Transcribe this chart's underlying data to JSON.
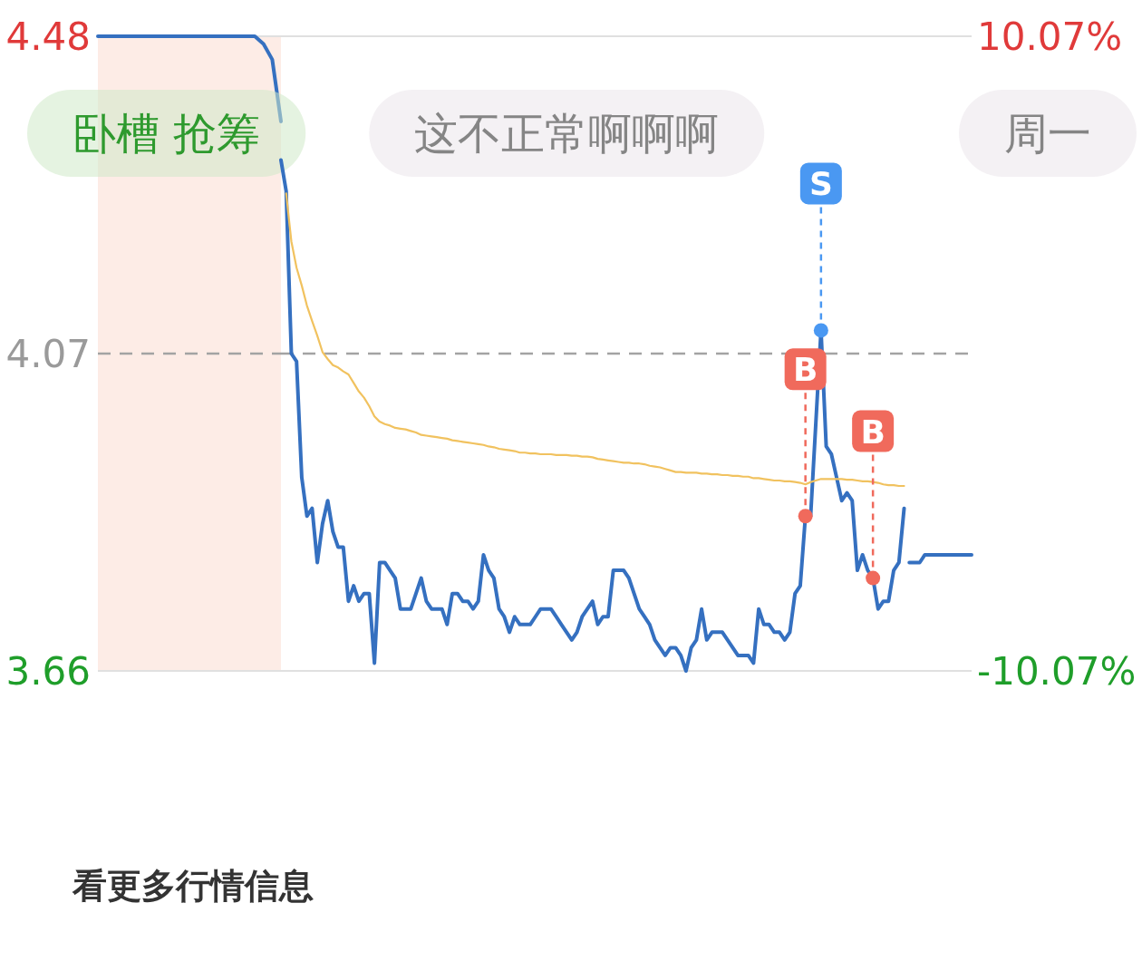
{
  "chart_data": [
    {
      "type": "line",
      "categories": [
        null,
        null,
        null,
        null,
        null,
        null,
        null,
        null,
        null,
        null,
        null,
        null,
        null,
        null,
        null,
        null,
        null,
        null,
        null,
        null,
        null,
        null
      ],
      "series": [
        {
          "color": "#3570c0",
          "values": [
            4.48,
            4.48,
            4.48,
            4.48,
            4.48,
            4.48,
            4.48,
            4.48,
            4.48,
            4.48,
            4.48,
            4.48,
            4.48,
            4.48,
            4.48,
            4.48,
            4.48,
            4.48,
            4.48,
            4.47,
            4.45,
            4.37
          ]
        }
      ],
      "ylim": [
        3.66,
        4.48
      ],
      "yticks": [
        4.48,
        4.07,
        3.66
      ],
      "tick_labels": "y",
      "ref_lines": [
        {
          "axis": "y",
          "value": 4.07,
          "color": "#a3a3a3",
          "line_style": "dashed"
        }
      ],
      "bands": [
        {
          "axis": "y",
          "from": 3.66,
          "to": 4.48,
          "color": "#fdece6"
        }
      ],
      "annotations": [
        "看更多行情信息"
      ]
    },
    {
      "type": "line",
      "categories": [
        null,
        null,
        null,
        null,
        null,
        null,
        null,
        null,
        null,
        null,
        null,
        null,
        null,
        null,
        null,
        null,
        null,
        null,
        null,
        null,
        null,
        null,
        null,
        null,
        null,
        null,
        null,
        null,
        null,
        null,
        null,
        null,
        null,
        null,
        null,
        null,
        null,
        null,
        null,
        null,
        null,
        null,
        null,
        null,
        null,
        null,
        null,
        null,
        null,
        null,
        null,
        null,
        null,
        null,
        null,
        null,
        null,
        null,
        null,
        null,
        null,
        null,
        null,
        null,
        null,
        null,
        null,
        null,
        null,
        null,
        null,
        null,
        null,
        null,
        null,
        null,
        null,
        null,
        null,
        null,
        null,
        null,
        null,
        null,
        null,
        null,
        null,
        null,
        null,
        null,
        null,
        null,
        null,
        null,
        null,
        null,
        null,
        null,
        null,
        null,
        null,
        null,
        null,
        null,
        null,
        null,
        null,
        null,
        null,
        null,
        null,
        null,
        null,
        null,
        null,
        null,
        null,
        null,
        null,
        null,
        null,
        null,
        null,
        null,
        null,
        null,
        null,
        null,
        null,
        null,
        null,
        null,
        null,
        null
      ],
      "series": [
        {
          "color": "#3570c0",
          "values": [
            4.32,
            4.28,
            4.07,
            4.06,
            3.91,
            3.86,
            3.87,
            3.8,
            3.85,
            3.88,
            3.84,
            3.82,
            3.82,
            3.75,
            3.77,
            3.75,
            3.76,
            3.76,
            3.67,
            3.8,
            3.8,
            3.79,
            3.78,
            3.74,
            3.74,
            3.74,
            3.76,
            3.78,
            3.75,
            3.74,
            3.74,
            3.74,
            3.72,
            3.76,
            3.76,
            3.75,
            3.75,
            3.74,
            3.75,
            3.81,
            3.79,
            3.78,
            3.74,
            3.73,
            3.71,
            3.73,
            3.72,
            3.72,
            3.72,
            3.73,
            3.74,
            3.74,
            3.74,
            3.73,
            3.72,
            3.71,
            3.7,
            3.71,
            3.73,
            3.74,
            3.75,
            3.72,
            3.73,
            3.73,
            3.79,
            3.79,
            3.79,
            3.78,
            3.76,
            3.74,
            3.73,
            3.72,
            3.7,
            3.69,
            3.68,
            3.69,
            3.69,
            3.68,
            3.66,
            3.69,
            3.7,
            3.74,
            3.7,
            3.71,
            3.71,
            3.71,
            3.7,
            3.69,
            3.68,
            3.68,
            3.68,
            3.67,
            3.74,
            3.72,
            3.72,
            3.71,
            3.71,
            3.7,
            3.71,
            3.76,
            3.77,
            3.86,
            3.86,
            3.98,
            4.1,
            3.95,
            3.94,
            3.91,
            3.88,
            3.89,
            3.88,
            3.79,
            3.81,
            3.79,
            3.78,
            3.74,
            3.75,
            3.75,
            3.79,
            3.8,
            3.87,
            null,
            null,
            null,
            null,
            null,
            null,
            null,
            null,
            null,
            null,
            null,
            null,
            null
          ]
        },
        {
          "color": "#3570c0",
          "values": [
            null,
            null,
            null,
            null,
            null,
            null,
            null,
            null,
            null,
            null,
            null,
            null,
            null,
            null,
            null,
            null,
            null,
            null,
            null,
            null,
            null,
            null,
            null,
            null,
            null,
            null,
            null,
            null,
            null,
            null,
            null,
            null,
            null,
            null,
            null,
            null,
            null,
            null,
            null,
            null,
            null,
            null,
            null,
            null,
            null,
            null,
            null,
            null,
            null,
            null,
            null,
            null,
            null,
            null,
            null,
            null,
            null,
            null,
            null,
            null,
            null,
            null,
            null,
            null,
            null,
            null,
            null,
            null,
            null,
            null,
            null,
            null,
            null,
            null,
            null,
            null,
            null,
            null,
            null,
            null,
            null,
            null,
            null,
            null,
            null,
            null,
            null,
            null,
            null,
            null,
            null,
            null,
            null,
            null,
            null,
            null,
            null,
            null,
            null,
            null,
            null,
            null,
            null,
            null,
            null,
            null,
            null,
            null,
            null,
            null,
            null,
            null,
            null,
            null,
            null,
            null,
            null,
            null,
            null,
            null,
            null,
            3.8,
            3.8,
            3.8,
            3.81,
            3.81,
            3.81,
            3.81,
            3.81,
            3.81,
            3.81,
            3.81,
            3.81,
            3.81
          ]
        },
        {
          "color": "#f1c25f",
          "values": [
            null,
            4.277,
            4.215,
            4.181,
            4.158,
            4.132,
            4.112,
            4.093,
            4.072,
            4.063,
            4.055,
            4.052,
            4.047,
            4.043,
            4.032,
            4.021,
            4.013,
            4.002,
            3.989,
            3.982,
            3.979,
            3.977,
            3.974,
            3.973,
            3.972,
            3.97,
            3.968,
            3.965,
            3.964,
            3.963,
            3.962,
            3.961,
            3.96,
            3.958,
            3.957,
            3.956,
            3.955,
            3.954,
            3.953,
            3.952,
            3.95,
            3.949,
            3.947,
            3.946,
            3.945,
            3.944,
            3.942,
            3.942,
            3.941,
            3.941,
            3.94,
            3.94,
            3.94,
            3.939,
            3.939,
            3.939,
            3.938,
            3.938,
            3.937,
            3.937,
            3.936,
            3.934,
            3.933,
            3.932,
            3.931,
            3.93,
            3.929,
            3.929,
            3.928,
            3.928,
            3.927,
            3.925,
            3.924,
            3.923,
            3.921,
            3.919,
            3.917,
            3.917,
            3.916,
            3.916,
            3.916,
            3.915,
            3.915,
            3.914,
            3.914,
            3.913,
            3.913,
            3.912,
            3.912,
            3.911,
            3.911,
            3.909,
            3.909,
            3.908,
            3.907,
            3.906,
            3.906,
            3.905,
            3.905,
            3.904,
            3.903,
            3.901,
            3.904,
            3.906,
            3.908,
            3.908,
            3.908,
            3.908,
            3.908,
            3.907,
            3.907,
            3.906,
            3.905,
            3.905,
            3.904,
            3.903,
            3.901,
            3.9,
            3.9,
            3.899,
            3.899,
            null,
            null,
            null,
            null,
            null,
            null,
            null,
            null,
            null,
            null,
            null,
            null,
            null
          ]
        },
        {
          "type": "scatter",
          "name": "B",
          "color": "#f06a5c",
          "values": [
            null,
            null,
            null,
            null,
            null,
            null,
            null,
            null,
            null,
            null,
            null,
            null,
            null,
            null,
            null,
            null,
            null,
            null,
            null,
            null,
            null,
            null,
            null,
            null,
            null,
            null,
            null,
            null,
            null,
            null,
            null,
            null,
            null,
            null,
            null,
            null,
            null,
            null,
            null,
            null,
            null,
            null,
            null,
            null,
            null,
            null,
            null,
            null,
            null,
            null,
            null,
            null,
            null,
            null,
            null,
            null,
            null,
            null,
            null,
            null,
            null,
            null,
            null,
            null,
            null,
            null,
            null,
            null,
            null,
            null,
            null,
            null,
            null,
            null,
            null,
            null,
            null,
            null,
            null,
            null,
            null,
            null,
            null,
            null,
            null,
            null,
            null,
            null,
            null,
            null,
            null,
            null,
            null,
            null,
            null,
            null,
            null,
            null,
            null,
            null,
            null,
            3.86,
            null,
            null,
            null,
            null,
            null,
            null,
            null,
            null,
            null,
            null,
            null,
            null,
            3.78,
            null,
            null,
            null,
            null,
            null,
            null,
            null,
            null,
            null,
            null,
            null,
            null,
            null,
            null,
            null,
            null,
            null,
            null,
            null
          ]
        },
        {
          "type": "scatter",
          "name": "S",
          "color": "#4a98f2",
          "values": [
            null,
            null,
            null,
            null,
            null,
            null,
            null,
            null,
            null,
            null,
            null,
            null,
            null,
            null,
            null,
            null,
            null,
            null,
            null,
            null,
            null,
            null,
            null,
            null,
            null,
            null,
            null,
            null,
            null,
            null,
            null,
            null,
            null,
            null,
            null,
            null,
            null,
            null,
            null,
            null,
            null,
            null,
            null,
            null,
            null,
            null,
            null,
            null,
            null,
            null,
            null,
            null,
            null,
            null,
            null,
            null,
            null,
            null,
            null,
            null,
            null,
            null,
            null,
            null,
            null,
            null,
            null,
            null,
            null,
            null,
            null,
            null,
            null,
            null,
            null,
            null,
            null,
            null,
            null,
            null,
            null,
            null,
            null,
            null,
            null,
            null,
            null,
            null,
            null,
            null,
            null,
            null,
            null,
            null,
            null,
            null,
            null,
            null,
            null,
            null,
            null,
            null,
            null,
            null,
            4.1,
            null,
            null,
            null,
            null,
            null,
            null,
            null,
            null,
            null,
            null,
            null,
            null,
            null,
            null,
            null,
            null,
            null,
            null,
            null,
            null,
            null,
            null,
            null,
            null,
            null,
            null,
            null,
            null,
            null
          ]
        }
      ],
      "ylim": [
        3.66,
        4.48
      ],
      "tick_labels": false,
      "y2lim": [
        -10.07,
        10.07
      ],
      "y2ticks": [
        {
          "value": 10.07,
          "label": "10.07%"
        },
        {
          "value": -10.07,
          "label": "-10.07%"
        }
      ],
      "ref_lines": [
        {
          "axis": "y",
          "value": 4.07,
          "color": "#a3a3a3",
          "line_style": "dashed"
        }
      ],
      "annotations": [
        "卧槽 抢筹",
        "这不正常啊啊啊",
        "周一"
      ]
    }
  ]
}
